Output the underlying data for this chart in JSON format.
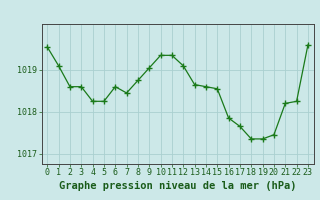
{
  "x": [
    0,
    1,
    2,
    3,
    4,
    5,
    6,
    7,
    8,
    9,
    10,
    11,
    12,
    13,
    14,
    15,
    16,
    17,
    18,
    19,
    20,
    21,
    22,
    23
  ],
  "y": [
    1019.55,
    1019.1,
    1018.6,
    1018.6,
    1018.25,
    1018.25,
    1018.6,
    1018.45,
    1018.75,
    1019.05,
    1019.35,
    1019.35,
    1019.1,
    1018.65,
    1018.6,
    1018.55,
    1017.85,
    1017.65,
    1017.35,
    1017.35,
    1017.45,
    1018.2,
    1018.25,
    1019.6
  ],
  "line_color": "#1a7a1a",
  "marker": "+",
  "marker_size": 4,
  "bg_color": "#cce8e8",
  "grid_color": "#aad0d0",
  "axis_label_color": "#1a5c1a",
  "title": "Graphe pression niveau de la mer (hPa)",
  "title_fontsize": 7.5,
  "tick_fontsize": 6,
  "ytick_labels": [
    "1017",
    "1018",
    "1019"
  ],
  "ytick_positions": [
    1017,
    1018,
    1019
  ],
  "xlim": [
    -0.5,
    23.5
  ],
  "ylim": [
    1016.75,
    1020.1
  ]
}
